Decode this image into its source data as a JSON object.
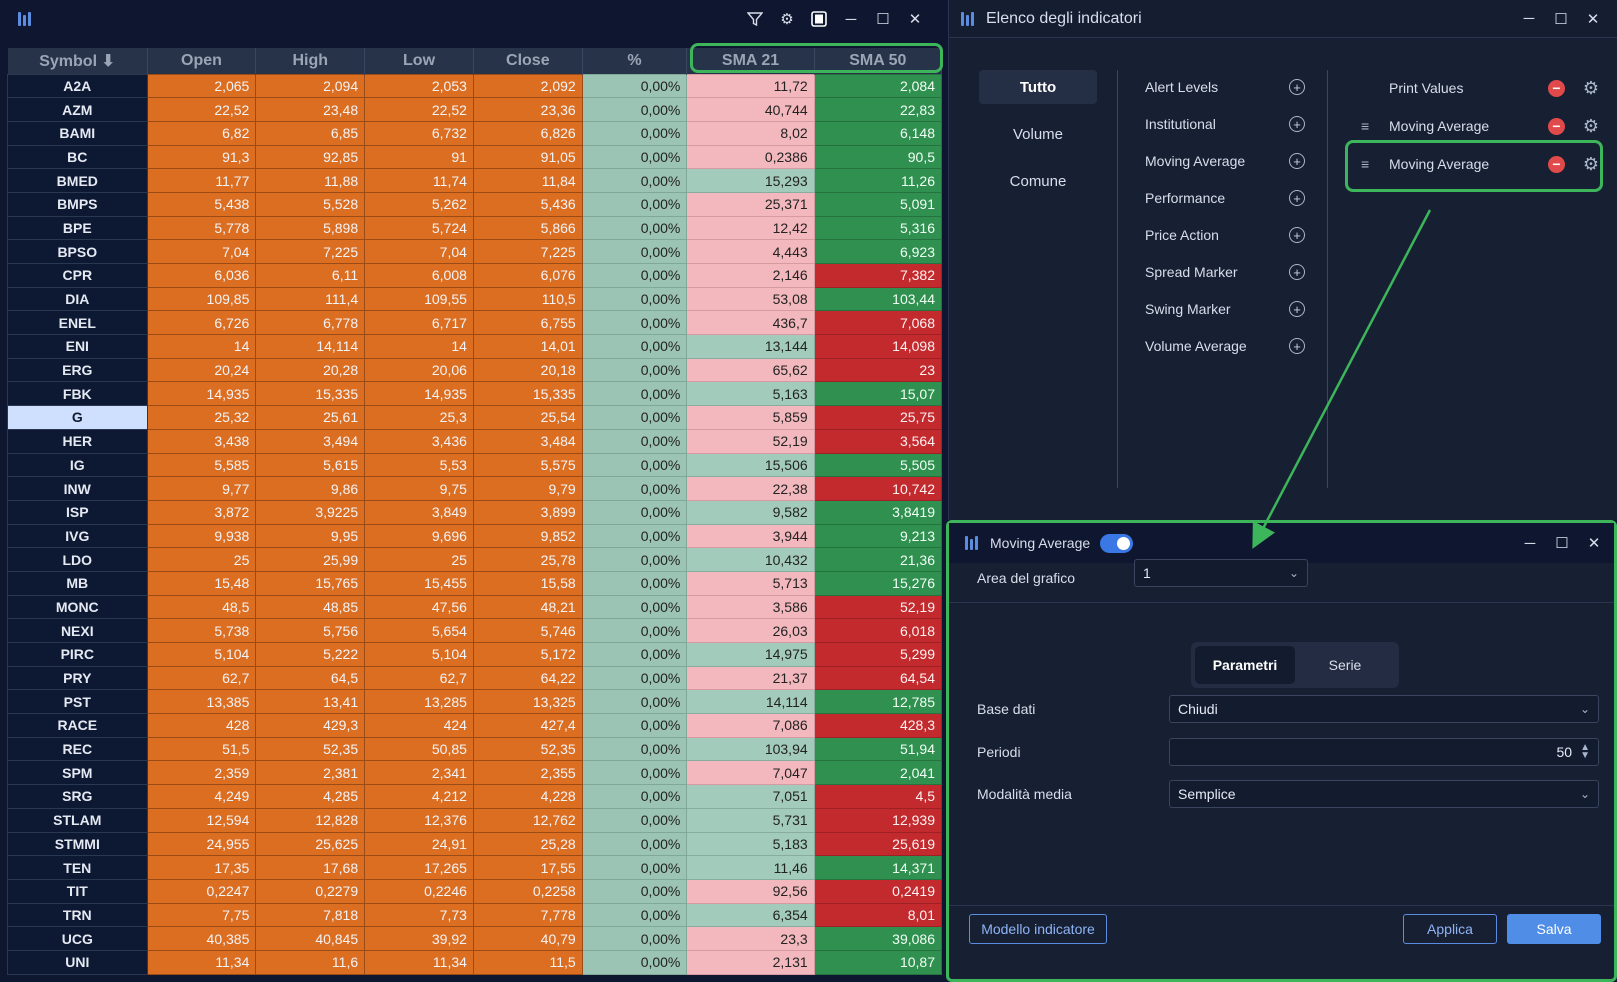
{
  "grid": {
    "columns": [
      "Symbol ⬇",
      "Open",
      "High",
      "Low",
      "Close",
      "%",
      "SMA 21",
      "SMA 50"
    ],
    "rows": [
      [
        "A2A",
        "2,065",
        "2,094",
        "2,053",
        "2,092",
        "0,00%",
        "11,72",
        "2,084",
        "p",
        "g"
      ],
      [
        "AZM",
        "22,52",
        "23,48",
        "22,52",
        "23,36",
        "0,00%",
        "40,744",
        "22,83",
        "p",
        "g"
      ],
      [
        "BAMI",
        "6,82",
        "6,85",
        "6,732",
        "6,826",
        "0,00%",
        "8,02",
        "6,148",
        "p",
        "g"
      ],
      [
        "BC",
        "91,3",
        "92,85",
        "91",
        "91,05",
        "0,00%",
        "0,2386",
        "90,5",
        "p",
        "g"
      ],
      [
        "BMED",
        "11,77",
        "11,88",
        "11,74",
        "11,84",
        "0,00%",
        "15,293",
        "11,26",
        "l",
        "g"
      ],
      [
        "BMPS",
        "5,438",
        "5,528",
        "5,262",
        "5,436",
        "0,00%",
        "25,371",
        "5,091",
        "p",
        "g"
      ],
      [
        "BPE",
        "5,778",
        "5,898",
        "5,724",
        "5,866",
        "0,00%",
        "12,42",
        "5,316",
        "p",
        "g"
      ],
      [
        "BPSO",
        "7,04",
        "7,225",
        "7,04",
        "7,225",
        "0,00%",
        "4,443",
        "6,923",
        "p",
        "g"
      ],
      [
        "CPR",
        "6,036",
        "6,11",
        "6,008",
        "6,076",
        "0,00%",
        "2,146",
        "7,382",
        "p",
        "r"
      ],
      [
        "DIA",
        "109,85",
        "111,4",
        "109,55",
        "110,5",
        "0,00%",
        "53,08",
        "103,44",
        "p",
        "g"
      ],
      [
        "ENEL",
        "6,726",
        "6,778",
        "6,717",
        "6,755",
        "0,00%",
        "436,7",
        "7,068",
        "p",
        "r"
      ],
      [
        "ENI",
        "14",
        "14,114",
        "14",
        "14,01",
        "0,00%",
        "13,144",
        "14,098",
        "l",
        "r"
      ],
      [
        "ERG",
        "20,24",
        "20,28",
        "20,06",
        "20,18",
        "0,00%",
        "65,62",
        "23",
        "p",
        "r"
      ],
      [
        "FBK",
        "14,935",
        "15,335",
        "14,935",
        "15,335",
        "0,00%",
        "5,163",
        "15,07",
        "l",
        "g"
      ],
      [
        "G",
        "25,32",
        "25,61",
        "25,3",
        "25,54",
        "0,00%",
        "5,859",
        "25,75",
        "p",
        "r"
      ],
      [
        "HER",
        "3,438",
        "3,494",
        "3,436",
        "3,484",
        "0,00%",
        "52,19",
        "3,564",
        "p",
        "r"
      ],
      [
        "IG",
        "5,585",
        "5,615",
        "5,53",
        "5,575",
        "0,00%",
        "15,506",
        "5,505",
        "l",
        "g"
      ],
      [
        "INW",
        "9,77",
        "9,86",
        "9,75",
        "9,79",
        "0,00%",
        "22,38",
        "10,742",
        "p",
        "r"
      ],
      [
        "ISP",
        "3,872",
        "3,9225",
        "3,849",
        "3,899",
        "0,00%",
        "9,582",
        "3,8419",
        "l",
        "g"
      ],
      [
        "IVG",
        "9,938",
        "9,95",
        "9,696",
        "9,852",
        "0,00%",
        "3,944",
        "9,213",
        "p",
        "g"
      ],
      [
        "LDO",
        "25",
        "25,99",
        "25",
        "25,78",
        "0,00%",
        "10,432",
        "21,36",
        "l",
        "g"
      ],
      [
        "MB",
        "15,48",
        "15,765",
        "15,455",
        "15,58",
        "0,00%",
        "5,713",
        "15,276",
        "p",
        "g"
      ],
      [
        "MONC",
        "48,5",
        "48,85",
        "47,56",
        "48,21",
        "0,00%",
        "3,586",
        "52,19",
        "p",
        "r"
      ],
      [
        "NEXI",
        "5,738",
        "5,756",
        "5,654",
        "5,746",
        "0,00%",
        "26,03",
        "6,018",
        "p",
        "r"
      ],
      [
        "PIRC",
        "5,104",
        "5,222",
        "5,104",
        "5,172",
        "0,00%",
        "14,975",
        "5,299",
        "l",
        "r"
      ],
      [
        "PRY",
        "62,7",
        "64,5",
        "62,7",
        "64,22",
        "0,00%",
        "21,37",
        "64,54",
        "p",
        "r"
      ],
      [
        "PST",
        "13,385",
        "13,41",
        "13,285",
        "13,325",
        "0,00%",
        "14,114",
        "12,785",
        "l",
        "g"
      ],
      [
        "RACE",
        "428",
        "429,3",
        "424",
        "427,4",
        "0,00%",
        "7,086",
        "428,3",
        "p",
        "r"
      ],
      [
        "REC",
        "51,5",
        "52,35",
        "50,85",
        "52,35",
        "0,00%",
        "103,94",
        "51,94",
        "l",
        "g"
      ],
      [
        "SPM",
        "2,359",
        "2,381",
        "2,341",
        "2,355",
        "0,00%",
        "7,047",
        "2,041",
        "p",
        "g"
      ],
      [
        "SRG",
        "4,249",
        "4,285",
        "4,212",
        "4,228",
        "0,00%",
        "7,051",
        "4,5",
        "l",
        "r"
      ],
      [
        "STLAM",
        "12,594",
        "12,828",
        "12,376",
        "12,762",
        "0,00%",
        "5,731",
        "12,939",
        "l",
        "r"
      ],
      [
        "STMMI",
        "24,955",
        "25,625",
        "24,91",
        "25,28",
        "0,00%",
        "5,183",
        "25,619",
        "l",
        "r"
      ],
      [
        "TEN",
        "17,35",
        "17,68",
        "17,265",
        "17,55",
        "0,00%",
        "11,46",
        "14,371",
        "l",
        "g"
      ],
      [
        "TIT",
        "0,2247",
        "0,2279",
        "0,2246",
        "0,2258",
        "0,00%",
        "92,56",
        "0,2419",
        "p",
        "r"
      ],
      [
        "TRN",
        "7,75",
        "7,818",
        "7,73",
        "7,778",
        "0,00%",
        "6,354",
        "8,01",
        "l",
        "r"
      ],
      [
        "UCG",
        "40,385",
        "40,845",
        "39,92",
        "40,79",
        "0,00%",
        "23,3",
        "39,086",
        "p",
        "g"
      ],
      [
        "UNI",
        "11,34",
        "11,6",
        "11,34",
        "11,5",
        "0,00%",
        "2,131",
        "10,87",
        "p",
        "g"
      ]
    ],
    "selected_symbol": "G"
  },
  "indicators_window": {
    "title": "Elenco degli indicatori",
    "categories": [
      "Tutto",
      "Volume",
      "Comune"
    ],
    "available": [
      "Alert Levels",
      "Institutional",
      "Moving Average",
      "Performance",
      "Price Action",
      "Spread Marker",
      "Swing Marker",
      "Volume Average"
    ],
    "selected": [
      "Print Values",
      "Moving Average",
      "Moving Average"
    ]
  },
  "settings_window": {
    "title": "Moving Average",
    "area_label": "Area del grafico",
    "area_value": "1",
    "tabs": [
      "Parametri",
      "Serie"
    ],
    "base_label": "Base dati",
    "base_value": "Chiudi",
    "period_label": "Periodi",
    "period_value": "50",
    "mode_label": "Modalità media",
    "mode_value": "Semplice",
    "template_btn": "Modello indicatore",
    "apply_btn": "Applica",
    "save_btn": "Salva"
  },
  "colors": {
    "accent": "#3cb55b",
    "orange": "#dc6e22",
    "red": "#c22a2e",
    "green": "#2f9050"
  }
}
